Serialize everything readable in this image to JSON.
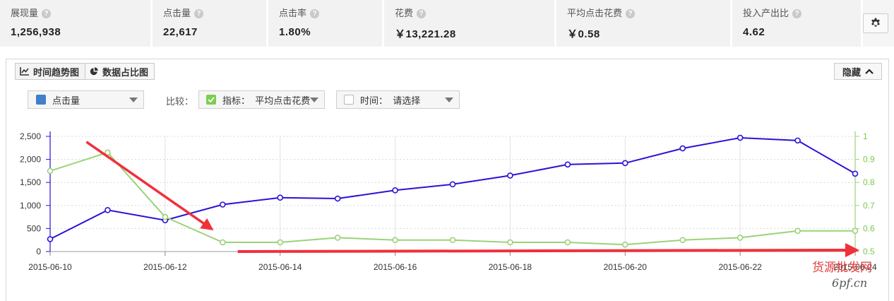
{
  "metrics": [
    {
      "label": "展现量",
      "value": "1,256,938"
    },
    {
      "label": "点击量",
      "value": "22,617"
    },
    {
      "label": "点击率",
      "value": "1.80%"
    },
    {
      "label": "花费",
      "value": "￥13,221.28"
    },
    {
      "label": "平均点击花费",
      "value": "￥0.58"
    },
    {
      "label": "投入产出比",
      "value": "4.62"
    }
  ],
  "help_icon_glyph": "?",
  "settings_icon": "gear-icon",
  "tabs": [
    {
      "label": "时间趋势图",
      "icon": "line-chart-icon",
      "active": true
    },
    {
      "label": "数据占比图",
      "icon": "pie-chart-icon",
      "active": false
    }
  ],
  "hide_button": {
    "label": "隐藏",
    "icon": "chevron-up-icon"
  },
  "controls": {
    "primary_select": {
      "label": "点击量",
      "color": "#3f7fcb"
    },
    "compare_label": "比较：",
    "metric_compare": {
      "label": "指标：  平均点击花费",
      "checked": true
    },
    "time_compare": {
      "label": "时间：  请选择",
      "checked": false
    }
  },
  "watermark": {
    "line1": "货源批发网",
    "line2": "6pf.cn"
  },
  "colors": {
    "primary_series": "#2a12d6",
    "secondary_series": "#9bd278",
    "arrow": "#f0303a"
  },
  "chart_data": {
    "type": "line",
    "x": [
      "2015-06-10",
      "2015-06-11",
      "2015-06-12",
      "2015-06-13",
      "2015-06-14",
      "2015-06-15",
      "2015-06-16",
      "2015-06-17",
      "2015-06-18",
      "2015-06-19",
      "2015-06-20",
      "2015-06-21",
      "2015-06-22",
      "2015-06-23",
      "2015-06-24"
    ],
    "x_tick_labels": [
      "2015-06-10",
      "2015-06-12",
      "2015-06-14",
      "2015-06-16",
      "2015-06-18",
      "2015-06-20",
      "2015-06-22",
      "2015-06-24"
    ],
    "series": [
      {
        "name": "点击量",
        "axis": "left",
        "values": [
          270,
          900,
          680,
          1020,
          1170,
          1150,
          1330,
          1460,
          1650,
          1890,
          1920,
          2240,
          2470,
          2410,
          1690
        ]
      },
      {
        "name": "平均点击花费",
        "axis": "right",
        "values": [
          0.85,
          0.93,
          0.65,
          0.54,
          0.54,
          0.56,
          0.55,
          0.55,
          0.54,
          0.54,
          0.53,
          0.55,
          0.56,
          0.59,
          0.59
        ]
      }
    ],
    "y_left": {
      "ticks": [
        "0",
        "500",
        "1,000",
        "1,500",
        "2,000",
        "2,500"
      ],
      "ylim": [
        0,
        2500
      ]
    },
    "y_right": {
      "ticks": [
        "0.5",
        "0.6",
        "0.7",
        "0.8",
        "0.9",
        "1"
      ],
      "ylim": [
        0.5,
        1
      ]
    },
    "grid": true,
    "annotations": [
      {
        "type": "arrow",
        "from": [
          "2015-06-11",
          0.93
        ],
        "to": [
          "2015-06-13",
          0.54
        ]
      },
      {
        "type": "arrow",
        "from": [
          "2015-06-14",
          0.5
        ],
        "to": [
          "2015-06-24",
          0.5
        ]
      }
    ]
  }
}
